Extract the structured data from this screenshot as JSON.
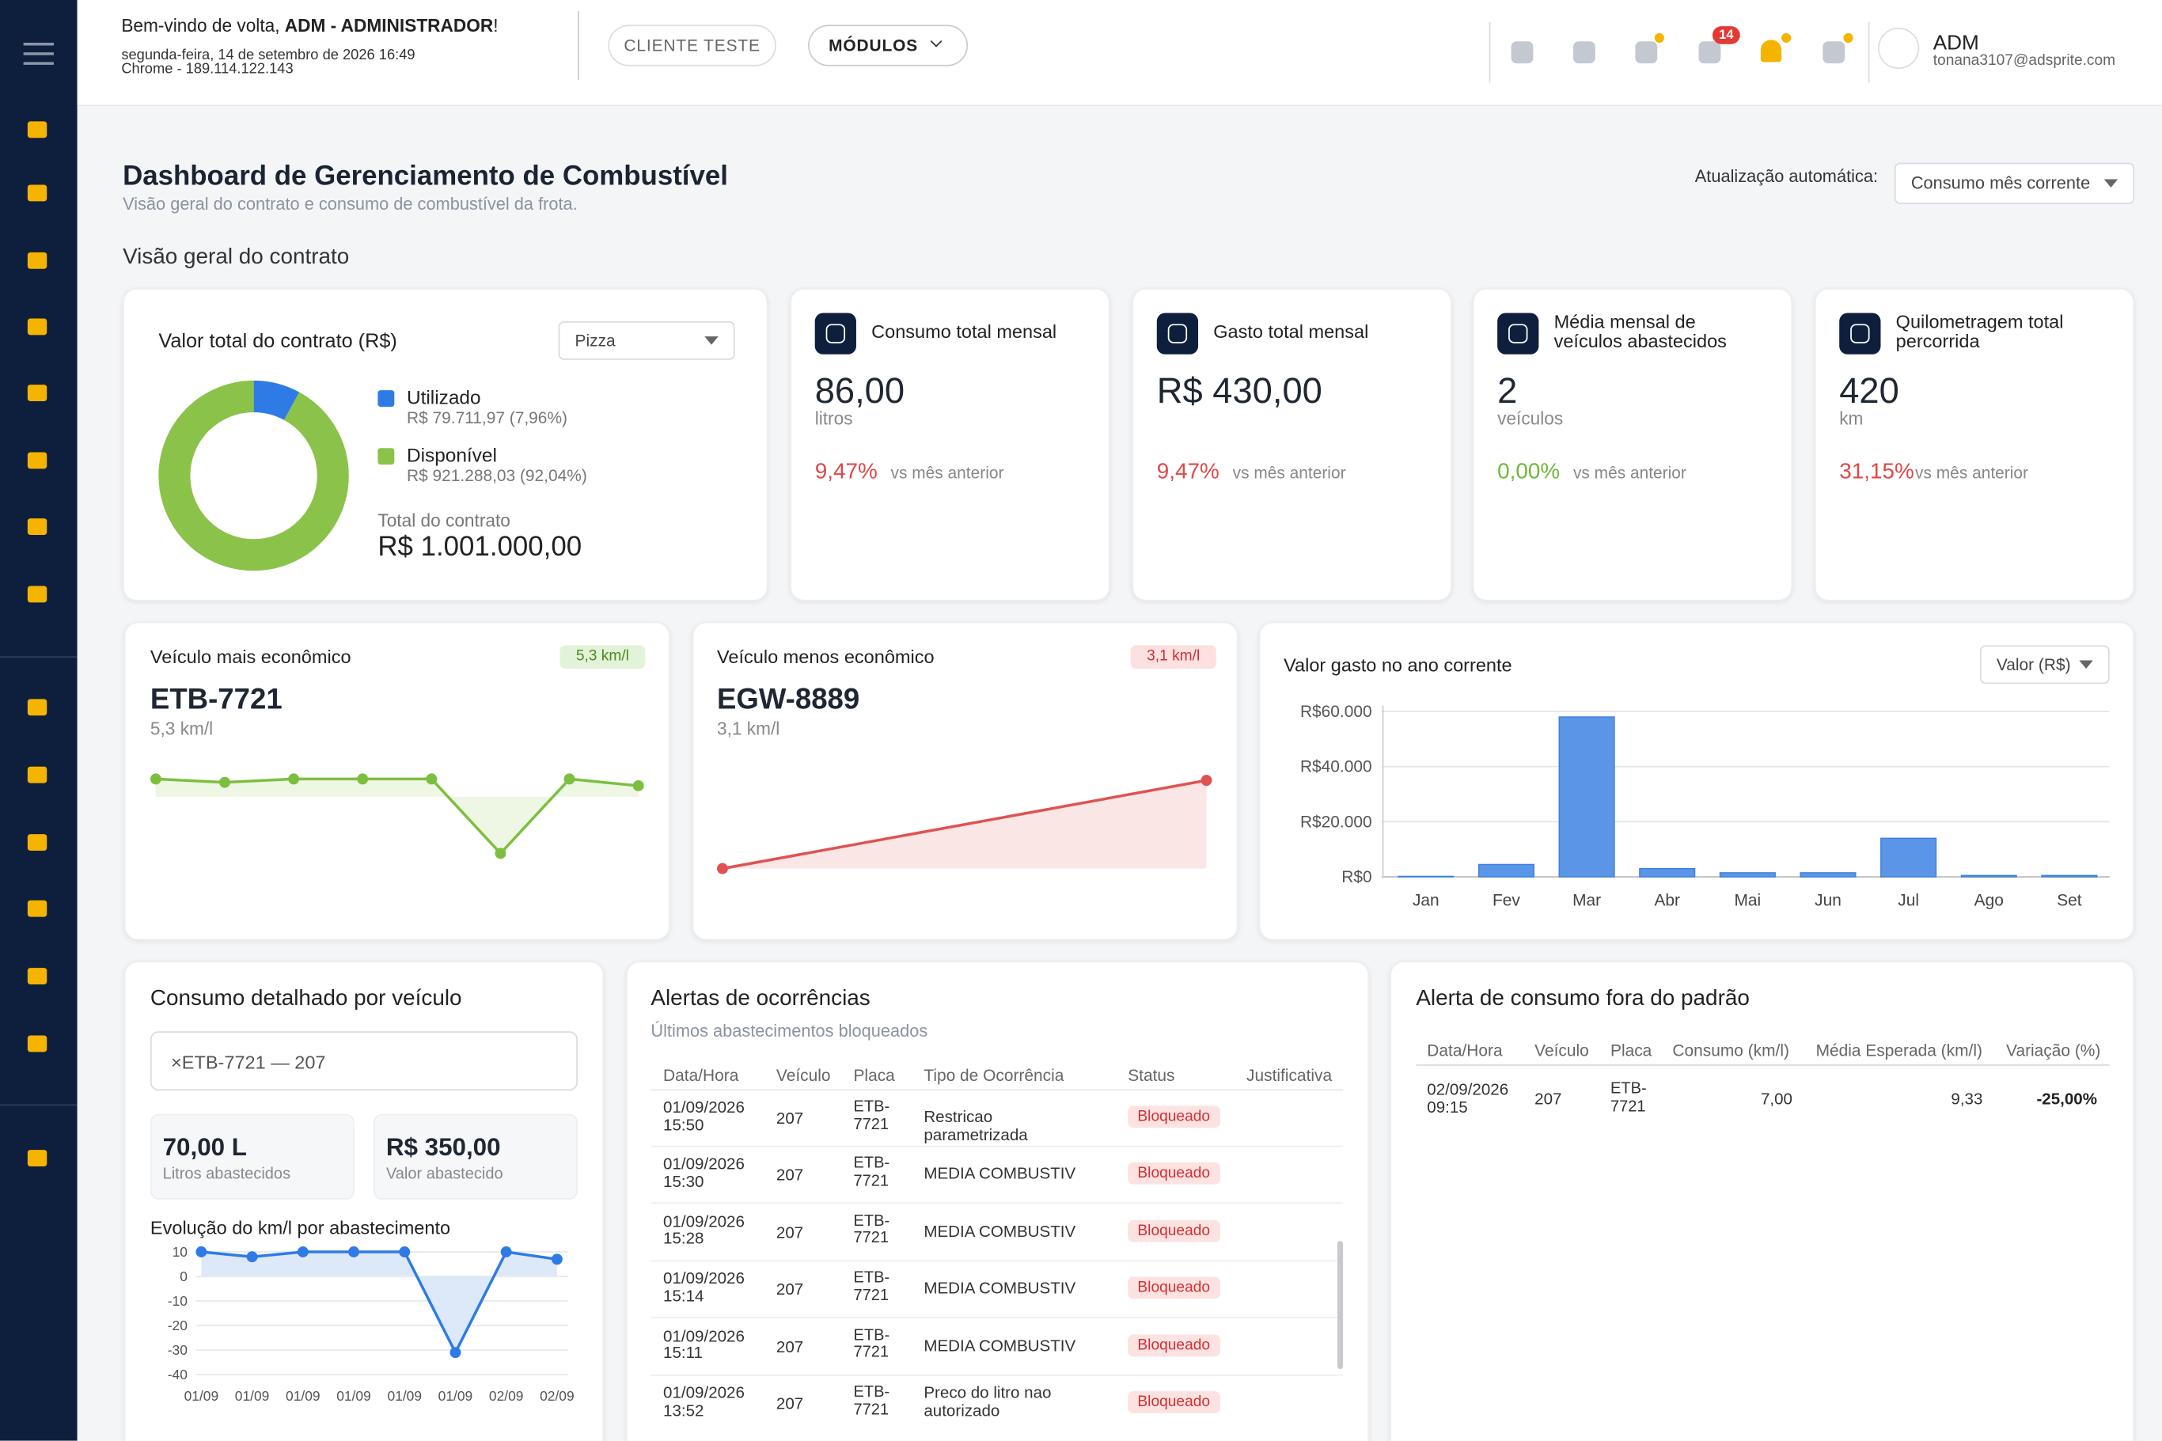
{
  "header": {
    "welcome": "Bem-vindo de volta, ",
    "user_role": "ADM - ADMINISTRADOR",
    "welcome_end": "!",
    "date": "segunda-feira, 14 de setembro de 2026 16:49",
    "browser": "Chrome - 189.114.122.143",
    "client_button": "CLIENTE TESTE",
    "modules_button": "MÓDULOS",
    "notification_count": "14",
    "user_name": "ADM",
    "user_email": "tonana3107@adsprite.com"
  },
  "page": {
    "title": "Dashboard de Gerenciamento de Combustível",
    "subtitle": "Visão geral do contrato e consumo de combustível da frota.",
    "auto_update_label": "Atualização automática:",
    "auto_update_value": "Consumo mês corrente",
    "section_title": "Visão geral do contrato"
  },
  "kpis": [
    {
      "title": "Consumo total mensal",
      "value": "86,00",
      "unit": "litros",
      "change": "9,47%",
      "change_label": "vs mês anterior",
      "change_color": "#e04848"
    },
    {
      "title": "Gasto total mensal",
      "value": "R$ 430,00",
      "change": "9,47%",
      "change_label": "vs mês anterior",
      "change_color": "#e04848"
    },
    {
      "title": "Média mensal de veículos abastecidos",
      "value": "2",
      "unit": "veículos",
      "change": "0,00%",
      "change_label": "vs mês anterior",
      "change_color": "#6fb83a"
    },
    {
      "title": "Quilometragem total percorrida",
      "value": "420",
      "unit": "km",
      "change": "31,15%",
      "change_label": "vs mês anterior",
      "change_color": "#e04848"
    }
  ],
  "chart_data": [
    {
      "type": "pie",
      "title": "Valor total do contrato (R$)",
      "selector": "Pizza",
      "categories": [
        "Utilizado",
        "Disponível"
      ],
      "values": [
        7.96,
        92.04
      ],
      "value_labels": [
        "R$ 79.711,97 (7,96%)",
        "R$ 921.288,03 (92,04%)"
      ],
      "colors": [
        "#2f7be5",
        "#8bc34a"
      ],
      "total_label": "Total do contrato",
      "total_value": "R$ 1.001.000,00"
    },
    {
      "type": "line",
      "title": "Veículo mais econômico",
      "badge": "5,3 km/l",
      "vehicle": "ETB-7721",
      "subtitle": "5,3 km/l",
      "values": [
        5.3,
        5.2,
        5.3,
        5.3,
        5.3,
        3.1,
        5.3,
        5.1
      ],
      "color": "#7cbf3f",
      "fill": "#eef6e4"
    },
    {
      "type": "line",
      "title": "Veículo menos econômico",
      "badge": "3,1 km/l",
      "vehicle": "EGW-8889",
      "subtitle": "3,1 km/l",
      "values": [
        2.2,
        3.1
      ],
      "color": "#e05252",
      "fill": "#fbe6e6"
    },
    {
      "type": "bar",
      "title": "Valor gasto no ano corrente",
      "selector": "Valor (R$)",
      "categories": [
        "Jan",
        "Fev",
        "Mar",
        "Abr",
        "Mai",
        "Jun",
        "Jul",
        "Ago",
        "Set"
      ],
      "values": [
        200,
        4500,
        58000,
        3000,
        1500,
        1500,
        14000,
        500,
        500
      ],
      "color": "#5b95e8",
      "ylim": [
        0,
        60000
      ],
      "yticks": [
        {
          "value": 0,
          "label": "R$0"
        },
        {
          "value": 20000,
          "label": "R$20.000"
        },
        {
          "value": 40000,
          "label": "R$40.000"
        },
        {
          "value": 60000,
          "label": "R$60.000"
        }
      ],
      "grid": true
    },
    {
      "type": "line",
      "title": "Evolução do km/l por abastecimento",
      "categories": [
        "01/09",
        "01/09",
        "01/09",
        "01/09",
        "01/09",
        "01/09",
        "02/09",
        "02/09"
      ],
      "values": [
        10,
        8,
        10,
        10,
        10,
        -31,
        10,
        7
      ],
      "color": "#2f7be5",
      "fill": "#dde9f8",
      "ylim": [
        -40,
        10
      ],
      "yticks": [
        10,
        0,
        -10,
        -20,
        -30,
        -40
      ],
      "grid": true
    }
  ],
  "vehicle_detail": {
    "title": "Consumo detalhado por veículo",
    "selected": "×ETB-7721 — 207",
    "liters": "70,00 L",
    "liters_label": "Litros abastecidos",
    "amount": "R$ 350,00",
    "amount_label": "Valor abastecido"
  },
  "alerts": {
    "title": "Alertas de ocorrências",
    "subtitle": "Últimos abastecimentos bloqueados",
    "columns": [
      "Data/Hora",
      "Veículo",
      "Placa",
      "Tipo de Ocorrência",
      "Status",
      "Justificativa"
    ],
    "rows": [
      [
        "01/09/2026 15:50",
        "207",
        "ETB-7721",
        "Restricao parametrizada",
        "Bloqueado"
      ],
      [
        "01/09/2026 15:30",
        "207",
        "ETB-7721",
        "MEDIA COMBUSTIV",
        "Bloqueado"
      ],
      [
        "01/09/2026 15:28",
        "207",
        "ETB-7721",
        "MEDIA COMBUSTIV",
        "Bloqueado"
      ],
      [
        "01/09/2026 15:14",
        "207",
        "ETB-7721",
        "MEDIA COMBUSTIV",
        "Bloqueado"
      ],
      [
        "01/09/2026 15:11",
        "207",
        "ETB-7721",
        "MEDIA COMBUSTIV",
        "Bloqueado"
      ],
      [
        "01/09/2026 13:52",
        "207",
        "ETB-7721",
        "Preco do litro nao autorizado",
        "Bloqueado"
      ]
    ]
  },
  "consumption_alert": {
    "title": "Alerta de consumo fora do padrão",
    "columns": [
      "Data/Hora",
      "Veículo",
      "Placa",
      "Consumo (km/l)",
      "Média Esperada (km/l)",
      "Variação (%)"
    ],
    "rows": [
      [
        "02/09/2026 09:15",
        "207",
        "ETB-7721",
        "7,00",
        "9,33",
        "-25,00%"
      ]
    ]
  }
}
